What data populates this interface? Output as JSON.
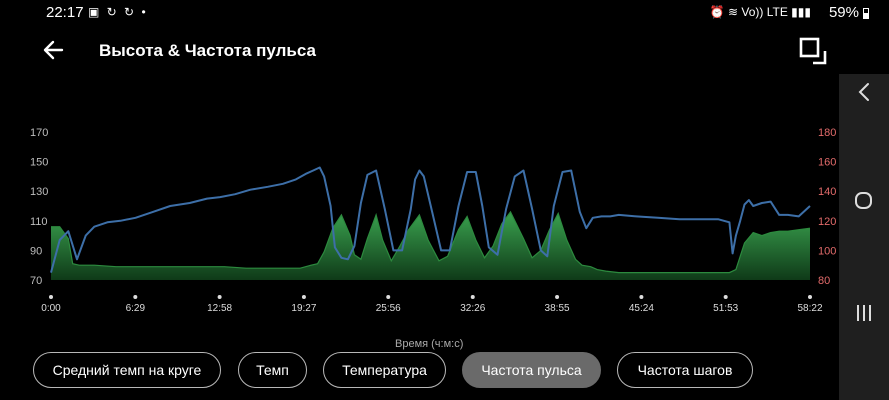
{
  "status": {
    "time": "22:17",
    "left_icons": "▣ ↻ ↻ •",
    "right_icons": "⏰ ≋ Vo)) LTE ▮▮▮",
    "battery": "59%"
  },
  "header": {
    "title": "Высота & Частота пульса"
  },
  "chart_data": {
    "type": "area",
    "x_tick_labels": [
      "0:00",
      "6:29",
      "12:58",
      "19:27",
      "25:56",
      "32:26",
      "38:55",
      "45:24",
      "51:53",
      "58:22"
    ],
    "x_ticks_sec": [
      0,
      389,
      778,
      1167,
      1556,
      1946,
      2335,
      2724,
      3113,
      3502
    ],
    "xlabel": "Время (ч:м:с)",
    "xlim": [
      0,
      3502
    ],
    "left_axis": {
      "ticks": [
        70,
        90,
        110,
        130,
        150,
        170
      ],
      "lim": [
        70,
        170
      ],
      "color": "#bdbdbd"
    },
    "right_axis": {
      "ticks": [
        80,
        100,
        120,
        140,
        160,
        180
      ],
      "lim": [
        80,
        180
      ],
      "color": "#e36b6b"
    },
    "series": [
      {
        "axis": "left",
        "color": "#3d6fa8",
        "x": [
          0,
          40,
          80,
          120,
          160,
          200,
          260,
          320,
          390,
          470,
          550,
          640,
          720,
          780,
          850,
          920,
          1000,
          1070,
          1130,
          1180,
          1210,
          1240,
          1260,
          1290,
          1310,
          1340,
          1370,
          1400,
          1430,
          1460,
          1500,
          1540,
          1580,
          1620,
          1660,
          1680,
          1700,
          1720,
          1760,
          1800,
          1840,
          1880,
          1920,
          1960,
          1990,
          2020,
          2060,
          2100,
          2140,
          2180,
          2220,
          2260,
          2290,
          2320,
          2360,
          2400,
          2440,
          2470,
          2500,
          2540,
          2580,
          2620,
          2700,
          2800,
          2900,
          3000,
          3080,
          3130,
          3145,
          3160,
          3180,
          3200,
          3220,
          3240,
          3280,
          3320,
          3360,
          3400,
          3450,
          3502
        ],
        "y": [
          75,
          97,
          103,
          84,
          100,
          106,
          109,
          110,
          112,
          116,
          120,
          122,
          125,
          126,
          128,
          131,
          133,
          135,
          138,
          142,
          144,
          146,
          140,
          120,
          92,
          85,
          84,
          93,
          122,
          141,
          144,
          118,
          90,
          90,
          118,
          138,
          144,
          140,
          115,
          90,
          90,
          120,
          143,
          143,
          120,
          92,
          87,
          118,
          140,
          144,
          118,
          90,
          86,
          120,
          143,
          144,
          116,
          105,
          112,
          113,
          113,
          114,
          113,
          112,
          111,
          111,
          111,
          109,
          88,
          100,
          110,
          121,
          124,
          120,
          122,
          123,
          114,
          114,
          113,
          120
        ]
      },
      {
        "axis": "right",
        "color": "#2c8a3e",
        "x": [
          0,
          40,
          80,
          100,
          130,
          200,
          300,
          400,
          500,
          600,
          700,
          800,
          900,
          1000,
          1100,
          1150,
          1200,
          1230,
          1260,
          1300,
          1340,
          1380,
          1400,
          1430,
          1460,
          1500,
          1530,
          1570,
          1610,
          1650,
          1700,
          1740,
          1790,
          1830,
          1880,
          1920,
          1960,
          2000,
          2040,
          2080,
          2120,
          2180,
          2220,
          2260,
          2300,
          2340,
          2380,
          2420,
          2450,
          2490,
          2520,
          2560,
          2620,
          2700,
          2800,
          2900,
          3000,
          3080,
          3130,
          3160,
          3200,
          3240,
          3280,
          3320,
          3360,
          3400,
          3450,
          3502
        ],
        "y": [
          116,
          116,
          108,
          91,
          90,
          90,
          89,
          89,
          89,
          89,
          89,
          89,
          88,
          88,
          88,
          88,
          90,
          91,
          99,
          115,
          124,
          110,
          97,
          94,
          108,
          124,
          107,
          93,
          103,
          114,
          124,
          107,
          93,
          96,
          114,
          123,
          107,
          95,
          103,
          118,
          126,
          108,
          95,
          100,
          114,
          125,
          107,
          94,
          90,
          89,
          87,
          86,
          85,
          85,
          85,
          85,
          85,
          85,
          85,
          87,
          105,
          112,
          110,
          112,
          113,
          113,
          114,
          115
        ]
      }
    ]
  },
  "tabs": [
    {
      "label": "Средний темп на круге",
      "active": false
    },
    {
      "label": "Темп",
      "active": false
    },
    {
      "label": "Температура",
      "active": false
    },
    {
      "label": "Частота пульса",
      "active": true
    },
    {
      "label": "Частота шагов",
      "active": false
    }
  ]
}
